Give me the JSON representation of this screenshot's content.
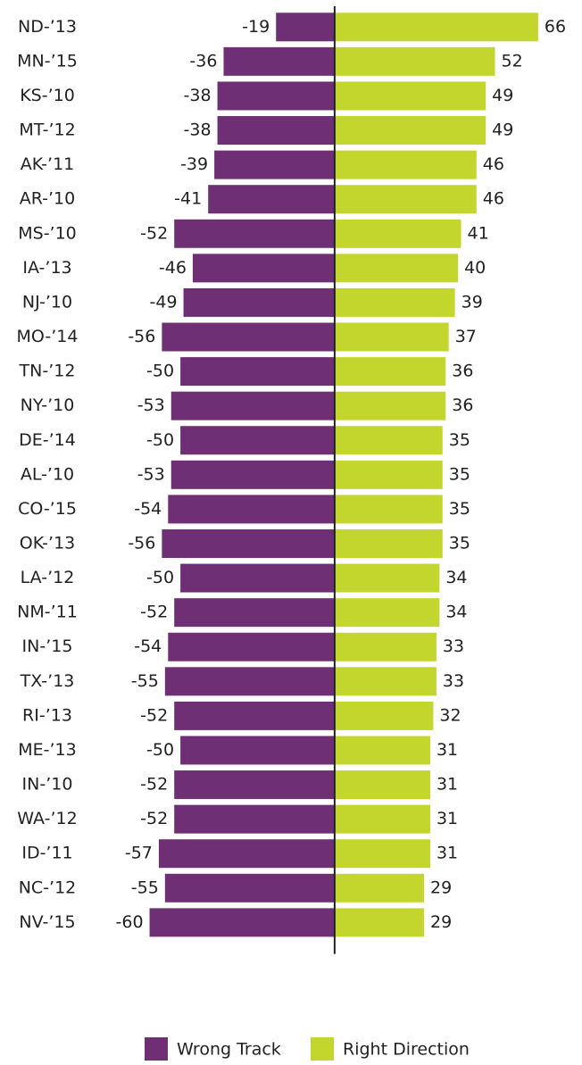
{
  "chart_data": {
    "type": "bar",
    "orientation": "horizontal",
    "stacked": false,
    "categories": [
      "ND-’13",
      "MN-’15",
      "KS-’10",
      "MT-’12",
      "AK-’11",
      "AR-’10",
      "MS-’10",
      "IA-’13",
      "NJ-’10",
      "MO-’14",
      "TN-’12",
      "NY-’10",
      "DE-’14",
      "AL-’10",
      "CO-’15",
      "OK-’13",
      "LA-’12",
      "NM-’11",
      "IN-’15",
      "TX-’13",
      "RI-’13",
      "ME-’13",
      "IN-’10",
      "WA-’12",
      "ID-’11",
      "NC-’12",
      "NV-’15"
    ],
    "series": [
      {
        "name": "Wrong Track",
        "color": "#6f2f74",
        "values": [
          -19,
          -36,
          -38,
          -38,
          -39,
          -41,
          -52,
          -46,
          -49,
          -56,
          -50,
          -53,
          -50,
          -53,
          -54,
          -56,
          -50,
          -52,
          -54,
          -55,
          -52,
          -50,
          -52,
          -52,
          -57,
          -55,
          -60
        ]
      },
      {
        "name": "Right Direction",
        "color": "#c3d62e",
        "values": [
          66,
          52,
          49,
          49,
          46,
          46,
          41,
          40,
          39,
          37,
          36,
          36,
          35,
          35,
          35,
          35,
          34,
          34,
          33,
          33,
          32,
          31,
          31,
          31,
          31,
          29,
          29
        ]
      }
    ],
    "xlim": [
      -70,
      75
    ],
    "legend": "bottom"
  }
}
